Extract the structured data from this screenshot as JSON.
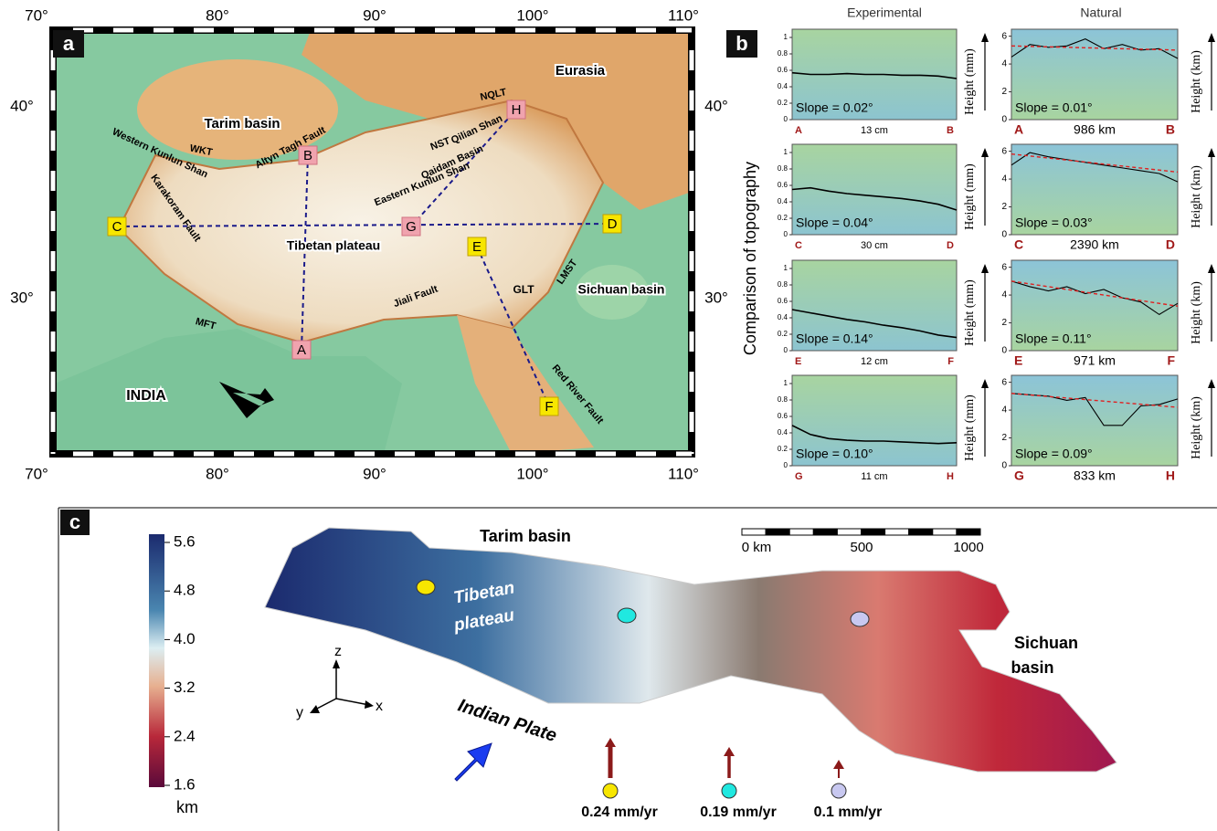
{
  "panel_a": {
    "label": "a",
    "lon_ticks": [
      "70°",
      "80°",
      "90°",
      "100°",
      "110°"
    ],
    "lat_ticks": [
      "40°",
      "30°"
    ],
    "labels": [
      "Eurasia",
      "Tarim basin",
      "NQLT",
      "Qilian Shan",
      "NST",
      "Qaidam Basin",
      "Eastern Kunlun Shan",
      "Altyn Tagh Fault",
      "WKT",
      "Western Kunlun Shan",
      "Karakoram Fault",
      "Tibetan plateau",
      "GLT",
      "LMST",
      "Sichuan basin",
      "Jiali Fault",
      "MFT",
      "INDIA",
      "Red River Fault"
    ],
    "points": [
      "A",
      "B",
      "C",
      "D",
      "E",
      "F",
      "G",
      "H"
    ]
  },
  "panel_b": {
    "label": "b",
    "col_titles": [
      "Experimental",
      "Natural"
    ],
    "y_title": "Comparison of topography",
    "exp_axis_label": "Height (mm)",
    "nat_axis_label": "Height (km)",
    "exp_ylim": [
      0,
      1.1
    ],
    "exp_yticks": [
      0,
      0.2,
      0.4,
      0.6,
      0.8,
      1
    ],
    "nat_ylim": [
      0,
      6.5
    ],
    "nat_yticks": [
      0,
      2,
      4,
      6
    ],
    "profiles": [
      {
        "start": "A",
        "end": "B",
        "exp_slope": "Slope = 0.02°",
        "exp_length": "13 cm",
        "nat_slope": "Slope = 0.01°",
        "nat_length": "986 km",
        "exp_values": [
          0.57,
          0.55,
          0.55,
          0.56,
          0.55,
          0.55,
          0.54,
          0.54,
          0.53,
          0.5
        ],
        "nat_values": [
          4.5,
          5.4,
          5.2,
          5.3,
          5.8,
          5.1,
          5.4,
          5.0,
          5.1,
          4.4
        ],
        "nat_fit": [
          5.3,
          5.0
        ]
      },
      {
        "start": "C",
        "end": "D",
        "exp_slope": "Slope = 0.04°",
        "exp_length": "30 cm",
        "nat_slope": "Slope = 0.03°",
        "nat_length": "2390 km",
        "exp_values": [
          0.55,
          0.57,
          0.53,
          0.5,
          0.48,
          0.46,
          0.44,
          0.41,
          0.37,
          0.3
        ],
        "nat_values": [
          5.0,
          5.9,
          5.6,
          5.4,
          5.2,
          5.0,
          4.8,
          4.6,
          4.4,
          3.8
        ],
        "nat_fit": [
          5.8,
          4.5
        ]
      },
      {
        "start": "E",
        "end": "F",
        "exp_slope": "Slope = 0.14°",
        "exp_length": "12 cm",
        "nat_slope": "Slope = 0.11°",
        "nat_length": "971 km",
        "exp_values": [
          0.5,
          0.46,
          0.42,
          0.38,
          0.35,
          0.31,
          0.28,
          0.24,
          0.19,
          0.16
        ],
        "nat_values": [
          5.0,
          4.6,
          4.3,
          4.6,
          4.1,
          4.4,
          3.8,
          3.5,
          2.6,
          3.4
        ],
        "nat_fit": [
          5.0,
          3.2
        ]
      },
      {
        "start": "G",
        "end": "H",
        "exp_slope": "Slope = 0.10°",
        "exp_length": "11 cm",
        "nat_slope": "Slope = 0.09°",
        "nat_length": "833 km",
        "exp_values": [
          0.49,
          0.38,
          0.33,
          0.31,
          0.3,
          0.3,
          0.29,
          0.28,
          0.27,
          0.28
        ],
        "nat_values": [
          5.2,
          5.1,
          5.0,
          4.7,
          4.9,
          2.9,
          2.9,
          4.3,
          4.4,
          4.8
        ],
        "nat_fit": [
          5.2,
          4.2
        ]
      }
    ]
  },
  "panel_c": {
    "label": "c",
    "colorbar": {
      "lim": [
        1.6,
        5.6
      ],
      "ticks": [
        5.6,
        4.8,
        {
          "value": 4,
          "label": "4.0"
        },
        3.2,
        2.4,
        1.6
      ],
      "unit": "km"
    },
    "labels": [
      "Tarim basin",
      "Tibetan",
      "plateau",
      "Sichuan",
      "basin",
      "Indian Plate"
    ],
    "axes": [
      "z",
      "y",
      "x"
    ],
    "scale": [
      "0 km",
      "500",
      "1000"
    ],
    "rates": [
      "0.24 mm/yr",
      "0.19 mm/yr",
      "0.1 mm/yr"
    ]
  }
}
